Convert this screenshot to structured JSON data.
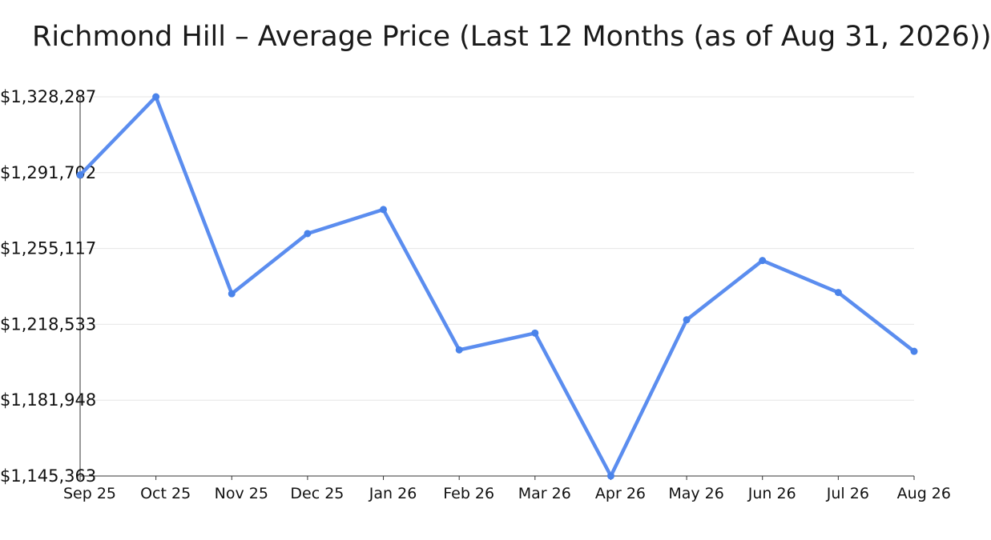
{
  "chart_data": {
    "type": "line",
    "title": "Richmond Hill – Average Price (Last 12 Months (as of Aug 31, 2026))",
    "xlabel": "",
    "ylabel": "",
    "categories": [
      "Sep 25",
      "Oct 25",
      "Nov 25",
      "Dec 25",
      "Jan 26",
      "Feb 26",
      "Mar 26",
      "Apr 26",
      "May 26",
      "Jun 26",
      "Jul 26",
      "Aug 26"
    ],
    "series": [
      {
        "values": [
          1290600,
          1328287,
          1233300,
          1262300,
          1273900,
          1206200,
          1214300,
          1145363,
          1220700,
          1249300,
          1233900,
          1205500
        ]
      }
    ],
    "ylim": [
      1145363,
      1328287
    ],
    "yticks": [
      1145363,
      1181948,
      1218533,
      1255117,
      1291702,
      1328287
    ],
    "ytick_labels": [
      "$1,145,363",
      "$1,181,948",
      "$1,218,533",
      "$1,255,117",
      "$1,291,702",
      "$1,328,287"
    ],
    "grid": true,
    "legend": "none",
    "colors": {
      "line": "#5b8def",
      "marker": "#4a83ea",
      "grid": "#e6e6e6",
      "axis": "#333333"
    }
  }
}
